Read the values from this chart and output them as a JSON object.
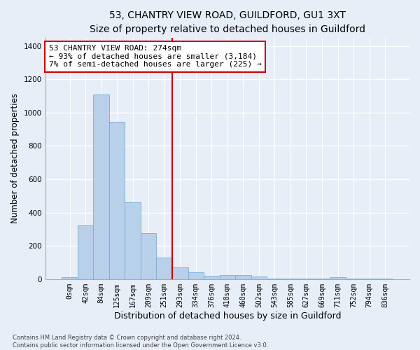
{
  "title": "53, CHANTRY VIEW ROAD, GUILDFORD, GU1 3XT",
  "subtitle": "Size of property relative to detached houses in Guildford",
  "xlabel": "Distribution of detached houses by size in Guildford",
  "ylabel": "Number of detached properties",
  "bin_labels": [
    "0sqm",
    "42sqm",
    "84sqm",
    "125sqm",
    "167sqm",
    "209sqm",
    "251sqm",
    "293sqm",
    "334sqm",
    "376sqm",
    "418sqm",
    "460sqm",
    "502sqm",
    "543sqm",
    "585sqm",
    "627sqm",
    "669sqm",
    "711sqm",
    "752sqm",
    "794sqm",
    "836sqm"
  ],
  "bar_values": [
    10,
    325,
    1110,
    945,
    460,
    275,
    130,
    70,
    40,
    22,
    25,
    25,
    18,
    5,
    5,
    5,
    5,
    12,
    2,
    2,
    2
  ],
  "bar_color": "#b8d0ea",
  "bar_edge_color": "#7aadd4",
  "vline_x_bin": 7,
  "vline_color": "#cc0000",
  "annotation_line1": "53 CHANTRY VIEW ROAD: 274sqm",
  "annotation_line2": "← 93% of detached houses are smaller (3,184)",
  "annotation_line3": "7% of semi-detached houses are larger (225) →",
  "annotation_box_color": "#ffffff",
  "annotation_box_edge": "#cc0000",
  "ylim": [
    0,
    1450
  ],
  "yticks": [
    0,
    200,
    400,
    600,
    800,
    1000,
    1200,
    1400
  ],
  "footer1": "Contains HM Land Registry data © Crown copyright and database right 2024.",
  "footer2": "Contains public sector information licensed under the Open Government Licence v3.0.",
  "bg_color": "#e8eef8",
  "grid_color": "#ffffff",
  "title_fontsize": 10,
  "subtitle_fontsize": 9.5,
  "tick_fontsize": 7,
  "ylabel_fontsize": 8.5,
  "xlabel_fontsize": 9,
  "annotation_fontsize": 8
}
